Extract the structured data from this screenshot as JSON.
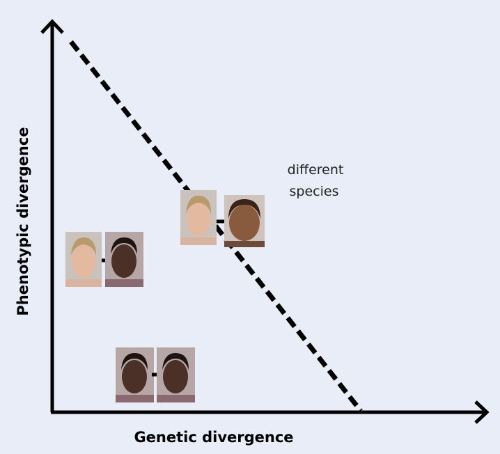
{
  "axes": {
    "x_label": "Genetic divergence",
    "y_label": "Phenotypic divergence"
  },
  "annotation": {
    "lines": [
      "different",
      "species"
    ]
  }
}
